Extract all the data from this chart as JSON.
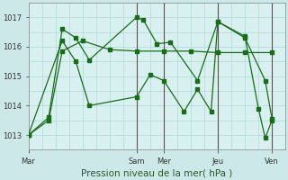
{
  "background_color": "#cce8e8",
  "plot_bg_color": "#d8f0f0",
  "grid_color": "#b0d8d8",
  "line_color": "#1a6b1a",
  "marker_color": "#1a6b1a",
  "vline_color": "#888888",
  "title": "Pression niveau de la mer( hPa )",
  "ylim": [
    1012.5,
    1017.5
  ],
  "yticks": [
    1013,
    1014,
    1015,
    1016,
    1017
  ],
  "ylabel_fontsize": 6.5,
  "xlabel_fontsize": 7.5,
  "xtick_labels": [
    "Mar",
    "Sam",
    "Mer",
    "Jeu",
    "Ven"
  ],
  "xtick_positions": [
    0,
    96,
    120,
    168,
    216
  ],
  "vlines": [
    96,
    120,
    168,
    216
  ],
  "xlim": [
    0,
    228
  ],
  "series": [
    {
      "x": [
        0,
        18,
        30,
        48,
        72,
        96,
        120,
        144,
        168,
        192,
        216
      ],
      "y": [
        1013.0,
        1013.5,
        1015.85,
        1016.2,
        1015.9,
        1015.85,
        1015.85,
        1015.85,
        1015.8,
        1015.8,
        1015.8
      ]
    },
    {
      "x": [
        0,
        18,
        30,
        42,
        54,
        96,
        102,
        114,
        126,
        150,
        168,
        192,
        210,
        216
      ],
      "y": [
        1013.0,
        1013.6,
        1016.6,
        1016.3,
        1015.55,
        1017.0,
        1016.9,
        1016.1,
        1016.15,
        1014.85,
        1016.85,
        1016.3,
        1014.85,
        1013.55
      ]
    },
    {
      "x": [
        0,
        30,
        42,
        54,
        96,
        108,
        120,
        138,
        150,
        162,
        168,
        192,
        204,
        210,
        216
      ],
      "y": [
        1013.0,
        1016.2,
        1015.5,
        1014.0,
        1014.3,
        1015.05,
        1014.85,
        1013.8,
        1014.55,
        1013.8,
        1016.85,
        1016.35,
        1013.9,
        1012.9,
        1013.5
      ]
    }
  ]
}
